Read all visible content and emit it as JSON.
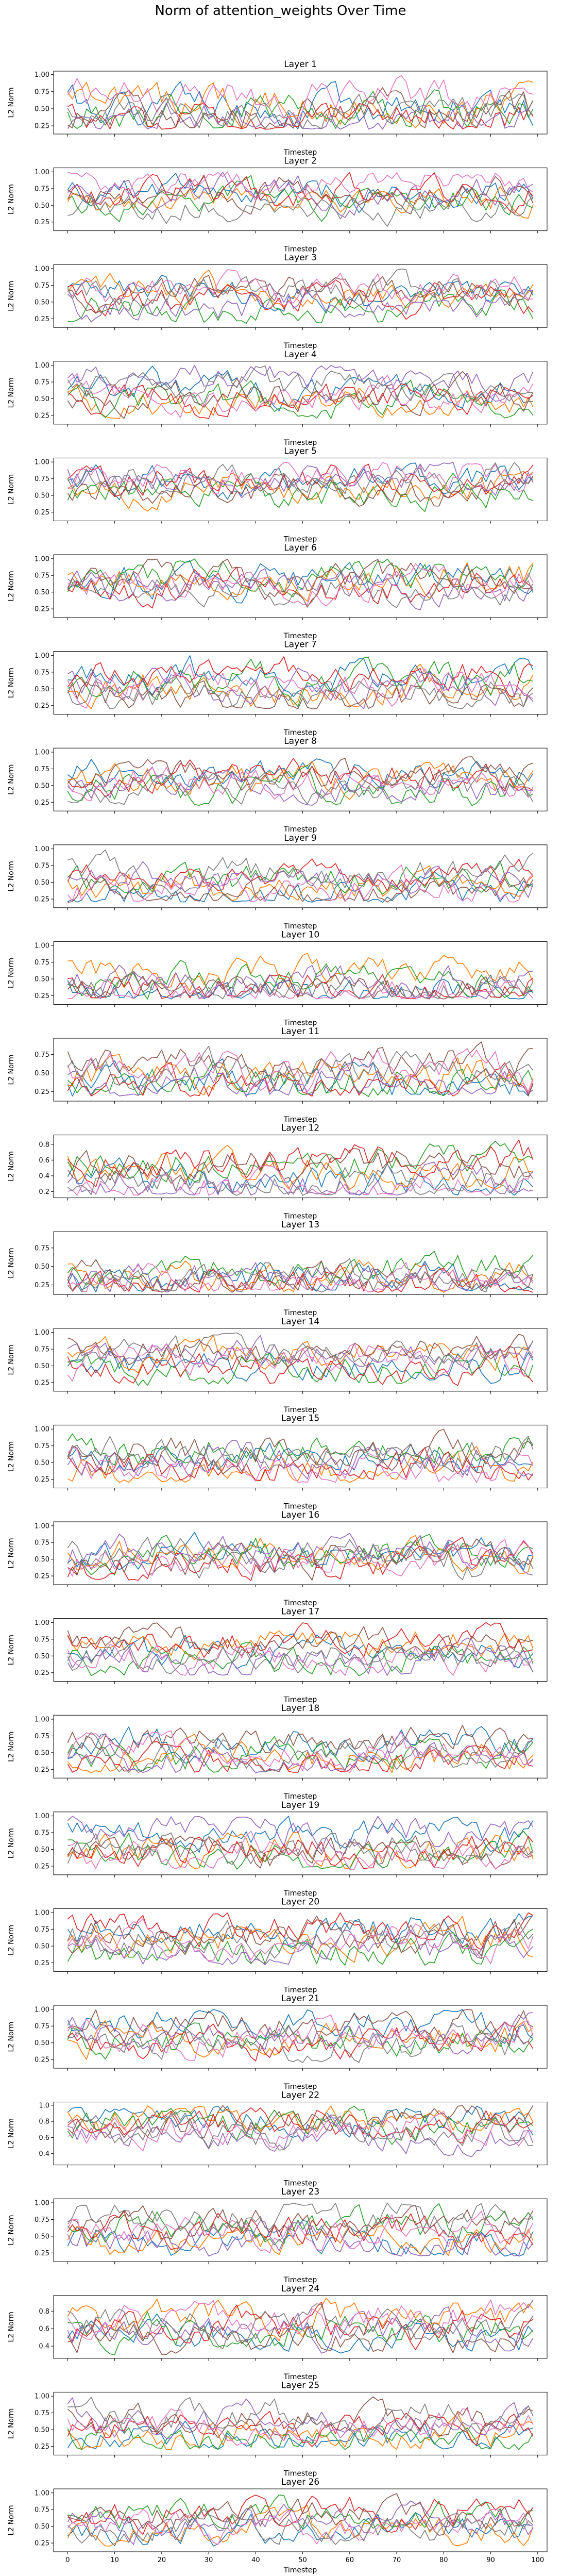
{
  "chart_data": {
    "type": "line",
    "title": "Norm of attention_weights Over Time",
    "xlabel": "Timestep",
    "ylabel": "L2 Norm",
    "xlim": [
      -3,
      102
    ],
    "x_ticks": [
      0,
      10,
      20,
      30,
      40,
      50,
      60,
      70,
      80,
      90,
      100
    ],
    "grid": false,
    "series_colors": [
      "#1f77b4",
      "#ff7f0e",
      "#2ca02c",
      "#d62728",
      "#9467bd",
      "#8c564b",
      "#e377c2",
      "#7f7f7f"
    ],
    "subplots": [
      {
        "title": "Layer 1",
        "yticks": [
          "0.25",
          "0.50",
          "0.75",
          "1.00"
        ],
        "ylim": [
          0.13,
          1.05
        ],
        "lo": 0.2,
        "hi": 1.0,
        "mid": 0.5,
        "spread": 0.35,
        "seed": 1
      },
      {
        "title": "Layer 2",
        "yticks": [
          "0.25",
          "0.50",
          "0.75",
          "1.00"
        ],
        "ylim": [
          0.12,
          1.06
        ],
        "lo": 0.18,
        "hi": 1.0,
        "mid": 0.65,
        "spread": 0.3,
        "seed": 2
      },
      {
        "title": "Layer 3",
        "yticks": [
          "0.25",
          "0.50",
          "0.75",
          "1.00"
        ],
        "ylim": [
          0.12,
          1.06
        ],
        "lo": 0.18,
        "hi": 1.0,
        "mid": 0.55,
        "spread": 0.3,
        "seed": 3
      },
      {
        "title": "Layer 4",
        "yticks": [
          "0.25",
          "0.50",
          "0.75",
          "1.00"
        ],
        "ylim": [
          0.12,
          1.06
        ],
        "lo": 0.2,
        "hi": 1.0,
        "mid": 0.6,
        "spread": 0.3,
        "seed": 4
      },
      {
        "title": "Layer 5",
        "yticks": [
          "0.25",
          "0.50",
          "0.75",
          "1.00"
        ],
        "ylim": [
          0.12,
          1.06
        ],
        "lo": 0.2,
        "hi": 1.0,
        "mid": 0.6,
        "spread": 0.3,
        "seed": 5
      },
      {
        "title": "Layer 6",
        "yticks": [
          "0.25",
          "0.50",
          "0.75",
          "1.00"
        ],
        "ylim": [
          0.12,
          1.06
        ],
        "lo": 0.18,
        "hi": 1.0,
        "mid": 0.55,
        "spread": 0.32,
        "seed": 6
      },
      {
        "title": "Layer 7",
        "yticks": [
          "0.25",
          "0.50",
          "0.75",
          "1.00"
        ],
        "ylim": [
          0.12,
          1.06
        ],
        "lo": 0.2,
        "hi": 1.0,
        "mid": 0.55,
        "spread": 0.32,
        "seed": 7
      },
      {
        "title": "Layer 8",
        "yticks": [
          "0.25",
          "0.50",
          "0.75",
          "1.00"
        ],
        "ylim": [
          0.12,
          1.06
        ],
        "lo": 0.2,
        "hi": 1.0,
        "mid": 0.5,
        "spread": 0.3,
        "seed": 8
      },
      {
        "title": "Layer 9",
        "yticks": [
          "0.25",
          "0.50",
          "0.75",
          "1.00"
        ],
        "ylim": [
          0.12,
          1.06
        ],
        "lo": 0.2,
        "hi": 1.0,
        "mid": 0.5,
        "spread": 0.3,
        "seed": 9
      },
      {
        "title": "Layer 10",
        "yticks": [
          "0.25",
          "0.50",
          "0.75",
          "1.00"
        ],
        "ylim": [
          0.12,
          1.06
        ],
        "lo": 0.2,
        "hi": 1.0,
        "mid": 0.45,
        "spread": 0.3,
        "seed": 10
      },
      {
        "title": "Layer 11",
        "yticks": [
          "0.25",
          "0.50",
          "0.75"
        ],
        "ylim": [
          0.12,
          0.97
        ],
        "lo": 0.18,
        "hi": 0.93,
        "mid": 0.45,
        "spread": 0.3,
        "seed": 11
      },
      {
        "title": "Layer 12",
        "yticks": [
          "0.2",
          "0.4",
          "0.6",
          "0.8"
        ],
        "ylim": [
          0.12,
          0.92
        ],
        "lo": 0.15,
        "hi": 0.88,
        "mid": 0.4,
        "spread": 0.28,
        "seed": 12
      },
      {
        "title": "Layer 13",
        "yticks": [
          "0.25",
          "0.50",
          "0.75"
        ],
        "ylim": [
          0.12,
          0.97
        ],
        "lo": 0.15,
        "hi": 0.93,
        "mid": 0.4,
        "spread": 0.28,
        "seed": 13
      },
      {
        "title": "Layer 14",
        "yticks": [
          "0.25",
          "0.50",
          "0.75",
          "1.00"
        ],
        "ylim": [
          0.12,
          1.06
        ],
        "lo": 0.2,
        "hi": 1.0,
        "mid": 0.55,
        "spread": 0.3,
        "seed": 14
      },
      {
        "title": "Layer 15",
        "yticks": [
          "0.25",
          "0.50",
          "0.75",
          "1.00"
        ],
        "ylim": [
          0.12,
          1.06
        ],
        "lo": 0.2,
        "hi": 1.0,
        "mid": 0.55,
        "spread": 0.32,
        "seed": 15
      },
      {
        "title": "Layer 16",
        "yticks": [
          "0.25",
          "0.50",
          "0.75",
          "1.00"
        ],
        "ylim": [
          0.12,
          1.06
        ],
        "lo": 0.18,
        "hi": 1.0,
        "mid": 0.55,
        "spread": 0.32,
        "seed": 16
      },
      {
        "title": "Layer 17",
        "yticks": [
          "0.25",
          "0.50",
          "0.75",
          "1.00"
        ],
        "ylim": [
          0.12,
          1.06
        ],
        "lo": 0.2,
        "hi": 1.0,
        "mid": 0.55,
        "spread": 0.3,
        "seed": 17
      },
      {
        "title": "Layer 18",
        "yticks": [
          "0.25",
          "0.50",
          "0.75",
          "1.00"
        ],
        "ylim": [
          0.12,
          1.06
        ],
        "lo": 0.2,
        "hi": 1.0,
        "mid": 0.55,
        "spread": 0.3,
        "seed": 18
      },
      {
        "title": "Layer 19",
        "yticks": [
          "0.25",
          "0.50",
          "0.75",
          "1.00"
        ],
        "ylim": [
          0.12,
          1.06
        ],
        "lo": 0.2,
        "hi": 1.0,
        "mid": 0.6,
        "spread": 0.32,
        "seed": 19
      },
      {
        "title": "Layer 20",
        "yticks": [
          "0.25",
          "0.50",
          "0.75",
          "1.00"
        ],
        "ylim": [
          0.12,
          1.06
        ],
        "lo": 0.2,
        "hi": 1.0,
        "mid": 0.6,
        "spread": 0.32,
        "seed": 20
      },
      {
        "title": "Layer 21",
        "yticks": [
          "0.25",
          "0.50",
          "0.75",
          "1.00"
        ],
        "ylim": [
          0.12,
          1.06
        ],
        "lo": 0.2,
        "hi": 1.0,
        "mid": 0.6,
        "spread": 0.32,
        "seed": 21
      },
      {
        "title": "Layer 22",
        "yticks": [
          "0.4",
          "0.6",
          "0.8",
          "1.0"
        ],
        "ylim": [
          0.26,
          1.04
        ],
        "lo": 0.3,
        "hi": 1.0,
        "mid": 0.65,
        "spread": 0.25,
        "seed": 22
      },
      {
        "title": "Layer 23",
        "yticks": [
          "0.25",
          "0.50",
          "0.75",
          "1.00"
        ],
        "ylim": [
          0.12,
          1.06
        ],
        "lo": 0.2,
        "hi": 1.0,
        "mid": 0.6,
        "spread": 0.32,
        "seed": 23
      },
      {
        "title": "Layer 24",
        "yticks": [
          "0.4",
          "0.6",
          "0.8"
        ],
        "ylim": [
          0.26,
          0.98
        ],
        "lo": 0.3,
        "hi": 0.95,
        "mid": 0.62,
        "spread": 0.25,
        "seed": 24
      },
      {
        "title": "Layer 25",
        "yticks": [
          "0.25",
          "0.50",
          "0.75",
          "1.00"
        ],
        "ylim": [
          0.12,
          1.06
        ],
        "lo": 0.2,
        "hi": 1.0,
        "mid": 0.5,
        "spread": 0.3,
        "seed": 25
      },
      {
        "title": "Layer 26",
        "yticks": [
          "0.25",
          "0.50",
          "0.75",
          "1.00"
        ],
        "ylim": [
          0.12,
          1.06
        ],
        "lo": 0.2,
        "hi": 1.0,
        "mid": 0.55,
        "spread": 0.3,
        "seed": 26
      }
    ]
  }
}
